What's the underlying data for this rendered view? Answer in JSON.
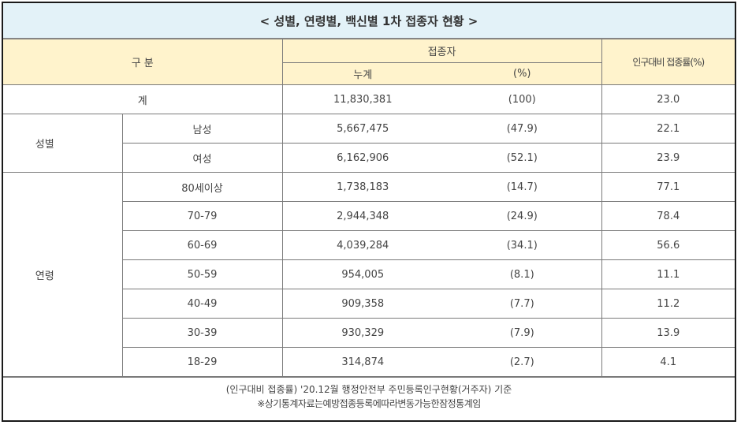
{
  "title": "< 성별, 연령별, 백신별 1차 접종자 현황 >",
  "header": {
    "category": "구 분",
    "vaccinated": "접종자",
    "cumulative": "누계",
    "percent": "(%)",
    "rate": "인구대비 접종률(%)"
  },
  "total": {
    "label": "계",
    "cumulative": "11,830,381",
    "percent": "(100)",
    "rate": "23.0"
  },
  "gender": {
    "label": "성별",
    "rows": [
      {
        "label": "남성",
        "cumulative": "5,667,475",
        "percent": "(47.9)",
        "rate": "22.1"
      },
      {
        "label": "여성",
        "cumulative": "6,162,906",
        "percent": "(52.1)",
        "rate": "23.9"
      }
    ]
  },
  "age": {
    "label": "연령",
    "rows": [
      {
        "label": "80세이상",
        "cumulative": "1,738,183",
        "percent": "(14.7)",
        "rate": "77.1"
      },
      {
        "label": "70-79",
        "cumulative": "2,944,348",
        "percent": "(24.9)",
        "rate": "78.4"
      },
      {
        "label": "60-69",
        "cumulative": "4,039,284",
        "percent": "(34.1)",
        "rate": "56.6"
      },
      {
        "label": "50-59",
        "cumulative": "954,005",
        "percent": "(8.1)",
        "rate": "11.1"
      },
      {
        "label": "40-49",
        "cumulative": "909,358",
        "percent": "(7.7)",
        "rate": "11.2"
      },
      {
        "label": "30-39",
        "cumulative": "930,329",
        "percent": "(7.9)",
        "rate": "13.9"
      },
      {
        "label": "18-29",
        "cumulative": "314,874",
        "percent": "(2.7)",
        "rate": "4.1"
      }
    ]
  },
  "footer": {
    "line1": "(인구대비 접종률) '20.12월 행정안전부 주민등록인구현황(거주자) 기준",
    "line2": "※상기통계자료는예방접종등록에따라변동가능한잠정통계임"
  }
}
